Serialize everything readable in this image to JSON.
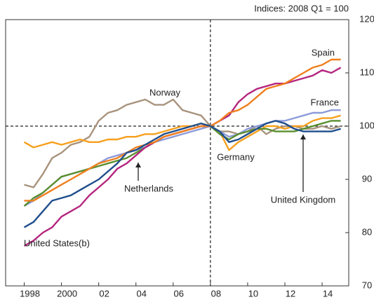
{
  "chart_data": {
    "type": "line",
    "title": "Indices: 2008 Q1 = 100",
    "x": [
      1998,
      1998.5,
      1999,
      1999.5,
      2000,
      2000.5,
      2001,
      2001.5,
      2002,
      2002.5,
      2003,
      2003.5,
      2004,
      2004.5,
      2005,
      2005.5,
      2006,
      2006.5,
      2007,
      2007.5,
      2008,
      2008.5,
      2009,
      2009.5,
      2010,
      2010.5,
      2011,
      2011.5,
      2012,
      2012.5,
      2013,
      2013.5,
      2014,
      2014.5,
      2015
    ],
    "series": [
      {
        "name": "Norway",
        "color": "#a8937d",
        "values": [
          89,
          88.5,
          91,
          94,
          95,
          96.5,
          97,
          98,
          101,
          102.5,
          103,
          104,
          104.5,
          105,
          104,
          104,
          105,
          103,
          102.5,
          102,
          100,
          99,
          99,
          98.5,
          99,
          100,
          98.5,
          99.5,
          100,
          100,
          99.5,
          99.5,
          100,
          99.5,
          100
        ]
      },
      {
        "name": "Germany",
        "color": "#f6a01e",
        "values": [
          97,
          96,
          96.5,
          97,
          96.5,
          97,
          97.5,
          97,
          97,
          97.5,
          97.5,
          98,
          98,
          98.5,
          98.5,
          99,
          99.5,
          100,
          100,
          100.5,
          100,
          99,
          95.5,
          97,
          98,
          99,
          100,
          100,
          99.5,
          100,
          100,
          101,
          101.5,
          101.5,
          102
        ]
      },
      {
        "name": "France",
        "color": "#8d9bd9",
        "values": [
          85,
          86,
          87.5,
          89,
          90.5,
          91,
          91.5,
          92,
          93,
          94,
          94.5,
          95,
          95.5,
          96,
          97,
          97.5,
          98,
          98.5,
          99,
          99.5,
          100,
          99,
          98,
          98.5,
          99.5,
          100,
          100.5,
          101,
          101,
          101.5,
          102,
          102.5,
          102.5,
          103,
          103
        ]
      },
      {
        "name": "Netherlands",
        "color": "#5a8f2e",
        "values": [
          85,
          86.5,
          87.5,
          89,
          90.5,
          91,
          91.5,
          92,
          92.5,
          93,
          93.5,
          94,
          95,
          96,
          97,
          98,
          98.5,
          99,
          99.5,
          100,
          100,
          98.5,
          97.5,
          98.5,
          99,
          99.5,
          99.5,
          99,
          99,
          99,
          99.5,
          100,
          100.5,
          101,
          101
        ]
      },
      {
        "name": "United States(b)",
        "color": "#b5267f",
        "values": [
          77.5,
          78.5,
          80,
          81,
          83,
          84,
          85,
          87,
          88.5,
          90,
          92,
          93,
          94.5,
          96,
          97,
          98,
          98.5,
          99,
          99.5,
          100,
          100,
          101,
          102,
          104.5,
          106,
          107,
          107.5,
          108,
          108,
          108.5,
          109,
          109.5,
          110.5,
          110,
          111
        ]
      },
      {
        "name": "Spain",
        "color": "#f07f1e",
        "values": [
          86,
          86,
          87,
          88,
          89,
          90,
          91,
          92,
          93,
          93.5,
          94,
          95,
          96,
          96.5,
          97,
          98,
          98.5,
          99,
          99.5,
          100,
          100,
          101,
          102.5,
          103,
          104,
          105.5,
          107,
          107.5,
          108,
          109,
          110,
          111,
          111.5,
          112.5,
          112.5
        ]
      },
      {
        "name": "United Kingdom",
        "color": "#1f4e8c",
        "values": [
          81,
          82,
          84,
          86,
          86.5,
          87,
          88,
          89,
          90,
          91.5,
          93,
          95,
          95.5,
          96.5,
          97.5,
          98.5,
          99,
          99.5,
          100,
          100.5,
          100,
          99,
          97,
          97.5,
          98.5,
          99.5,
          100.5,
          101,
          100.5,
          99.5,
          99,
          99,
          99,
          99,
          99.5
        ]
      }
    ],
    "xlim": [
      1997,
      2015.43
    ],
    "ylim": [
      70,
      120
    ],
    "xticks": [
      {
        "value": 1998,
        "label": "1998"
      },
      {
        "value": 2000,
        "label": "2000"
      },
      {
        "value": 2002,
        "label": "02"
      },
      {
        "value": 2004,
        "label": "04"
      },
      {
        "value": 2006,
        "label": "06"
      },
      {
        "value": 2008,
        "label": "08"
      },
      {
        "value": 2010,
        "label": "10"
      },
      {
        "value": 2012,
        "label": "12"
      },
      {
        "value": 2014,
        "label": "14"
      }
    ],
    "yticks": [
      70,
      80,
      90,
      100,
      110,
      120
    ],
    "reference_lines": {
      "x": 2008,
      "y": 100
    }
  }
}
